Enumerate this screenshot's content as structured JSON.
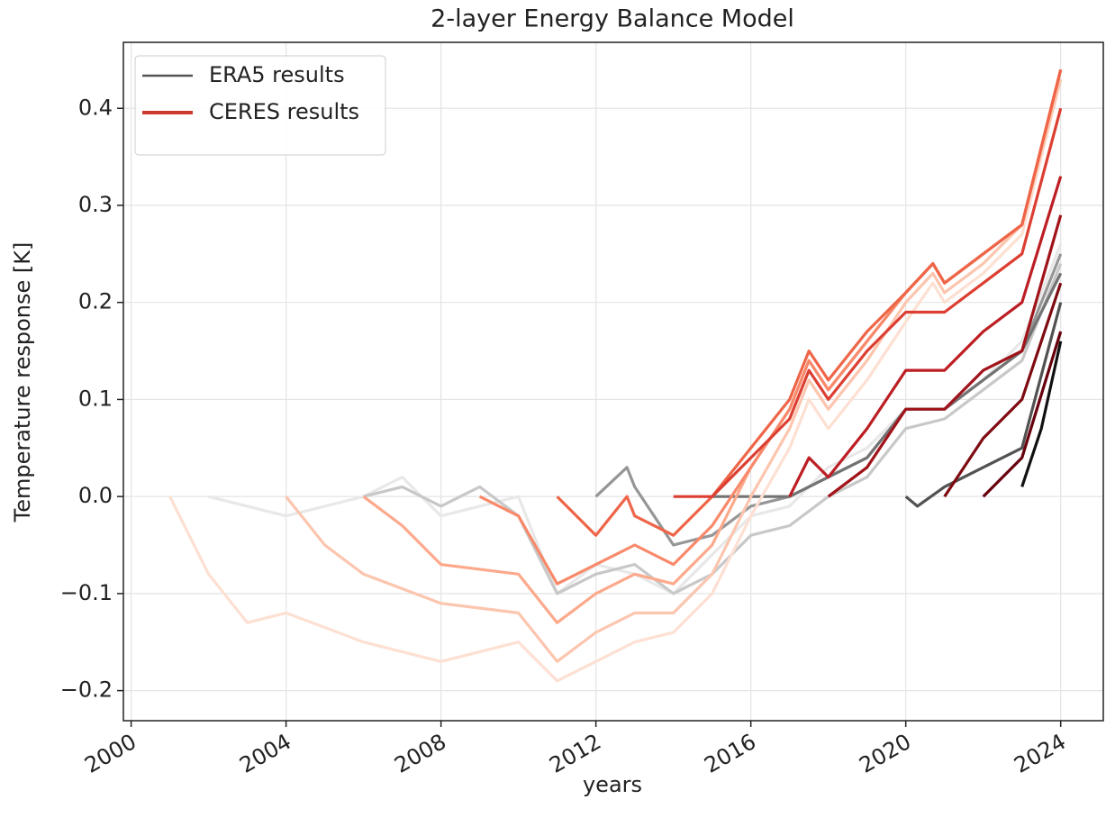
{
  "chart_data": {
    "type": "line",
    "title": "2-layer Energy Balance Model",
    "x_label": "years",
    "y_label": "Temperature response [K]",
    "xlim": [
      1999.8,
      2025.1
    ],
    "ylim": [
      -0.231,
      0.468
    ],
    "xticks": [
      2000,
      2004,
      2008,
      2012,
      2016,
      2020,
      2024
    ],
    "yticks": [
      {
        "value": -0.2,
        "label": "−0.2"
      },
      {
        "value": -0.1,
        "label": "−0.1"
      },
      {
        "value": 0,
        "label": "0.0"
      },
      0.1,
      0.2,
      0.3,
      0.4
    ],
    "grid": true,
    "legend": "upper left",
    "series": [
      {
        "name": "ERA5 results",
        "color": "#555555",
        "lines": [
          {
            "color": "#e8e8e8",
            "x": [
              2002,
              2004,
              2006,
              2007,
              2008,
              2010,
              2011,
              2012,
              2013,
              2014,
              2015,
              2016,
              2017,
              2018,
              2019,
              2020,
              2021,
              2022,
              2023,
              2024
            ],
            "values": [
              0,
              -0.02,
              0,
              0.02,
              -0.02,
              0,
              -0.1,
              -0.07,
              -0.08,
              -0.1,
              -0.06,
              -0.02,
              -0.01,
              0.03,
              0.05,
              0.09,
              0.09,
              0.12,
              0.16,
              0.26
            ]
          },
          {
            "color": "#c8c8c8",
            "x": [
              2006,
              2007,
              2008,
              2009,
              2010,
              2011,
              2012,
              2013,
              2014,
              2015,
              2016,
              2017,
              2018,
              2019,
              2020,
              2021,
              2022,
              2023,
              2024
            ],
            "values": [
              0,
              0.01,
              -0.01,
              0.01,
              -0.02,
              -0.1,
              -0.08,
              -0.07,
              -0.1,
              -0.08,
              -0.04,
              -0.03,
              0,
              0.02,
              0.07,
              0.08,
              0.11,
              0.14,
              0.24
            ]
          },
          {
            "color": "#969696",
            "x": [
              2012,
              2012.8,
              2013,
              2014,
              2015,
              2016,
              2017,
              2018,
              2019,
              2020,
              2021,
              2022,
              2023,
              2024
            ],
            "values": [
              0,
              0.03,
              0.01,
              -0.05,
              -0.04,
              -0.01,
              0,
              0.02,
              0.04,
              0.09,
              0.09,
              0.12,
              0.15,
              0.25
            ]
          },
          {
            "color": "#737373",
            "x": [
              2015,
              2016,
              2017,
              2018,
              2019,
              2020,
              2021,
              2022,
              2023,
              2024
            ],
            "values": [
              0,
              0,
              0,
              0.02,
              0.04,
              0.09,
              0.09,
              0.12,
              0.15,
              0.23
            ]
          },
          {
            "color": "#525252",
            "x": [
              2020,
              2020.3,
              2021,
              2022,
              2023,
              2024
            ],
            "values": [
              0,
              -0.01,
              0.01,
              0.03,
              0.05,
              0.2
            ]
          },
          {
            "color": "#111111",
            "x": [
              2023,
              2023.5,
              2024
            ],
            "values": [
              0.01,
              0.07,
              0.16
            ]
          }
        ]
      },
      {
        "name": "CERES results",
        "color": "#cb3a2c",
        "lines": [
          {
            "color": "#fde0d2",
            "x": [
              2001,
              2002,
              2003,
              2004,
              2006,
              2008,
              2010,
              2011,
              2012,
              2013,
              2014,
              2015,
              2016,
              2017,
              2017.5,
              2018,
              2019,
              2020,
              2020.7,
              2021,
              2022,
              2023,
              2024
            ],
            "values": [
              0,
              -0.08,
              -0.13,
              -0.12,
              -0.15,
              -0.17,
              -0.15,
              -0.19,
              -0.17,
              -0.15,
              -0.14,
              -0.1,
              -0.02,
              0.05,
              0.1,
              0.07,
              0.12,
              0.18,
              0.22,
              0.2,
              0.23,
              0.27,
              0.43
            ]
          },
          {
            "color": "#fcc5ae",
            "x": [
              2004,
              2005,
              2006,
              2008,
              2010,
              2011,
              2012,
              2013,
              2014,
              2015,
              2016,
              2017,
              2017.5,
              2018,
              2019,
              2020,
              2020.7,
              2021,
              2022,
              2023,
              2024
            ],
            "values": [
              0,
              -0.05,
              -0.08,
              -0.11,
              -0.12,
              -0.17,
              -0.14,
              -0.12,
              -0.12,
              -0.08,
              0,
              0.07,
              0.12,
              0.09,
              0.14,
              0.2,
              0.23,
              0.21,
              0.24,
              0.28,
              0.43
            ]
          },
          {
            "color": "#fca98c",
            "x": [
              2006,
              2007,
              2008,
              2010,
              2011,
              2012,
              2013,
              2014,
              2015,
              2016,
              2017,
              2017.5,
              2018,
              2019,
              2020,
              2020.7,
              2021,
              2022,
              2023,
              2024
            ],
            "values": [
              0,
              -0.03,
              -0.07,
              -0.08,
              -0.13,
              -0.1,
              -0.08,
              -0.09,
              -0.05,
              0.03,
              0.09,
              0.14,
              0.11,
              0.16,
              0.21,
              0.24,
              0.22,
              0.25,
              0.28,
              0.44
            ]
          },
          {
            "color": "#f8896a",
            "x": [
              2009,
              2010,
              2011,
              2012,
              2013,
              2014,
              2015,
              2016,
              2017,
              2017.5,
              2018,
              2019,
              2020,
              2020.7,
              2021,
              2022,
              2023,
              2024
            ],
            "values": [
              0,
              -0.02,
              -0.09,
              -0.07,
              -0.05,
              -0.07,
              -0.03,
              0.03,
              0.09,
              0.14,
              0.11,
              0.16,
              0.21,
              0.24,
              0.22,
              0.25,
              0.28,
              0.44
            ]
          },
          {
            "color": "#ee6548",
            "x": [
              2011,
              2012,
              2012.8,
              2013,
              2014,
              2015,
              2016,
              2017,
              2017.5,
              2018,
              2019,
              2020,
              2020.7,
              2021,
              2022,
              2023,
              2024
            ],
            "values": [
              0,
              -0.04,
              0,
              -0.02,
              -0.04,
              0,
              0.05,
              0.1,
              0.15,
              0.12,
              0.17,
              0.21,
              0.24,
              0.22,
              0.25,
              0.28,
              0.44
            ]
          },
          {
            "color": "#dc3f32",
            "x": [
              2014,
              2015,
              2016,
              2017,
              2017.5,
              2018,
              2019,
              2020,
              2021,
              2022,
              2023,
              2024
            ],
            "values": [
              0,
              0,
              0.04,
              0.08,
              0.13,
              0.1,
              0.15,
              0.19,
              0.19,
              0.22,
              0.25,
              0.4
            ]
          },
          {
            "color": "#bc1e24",
            "x": [
              2017,
              2017.5,
              2018,
              2019,
              2020,
              2021,
              2022,
              2023,
              2024
            ],
            "values": [
              0,
              0.04,
              0.02,
              0.07,
              0.13,
              0.13,
              0.17,
              0.2,
              0.33
            ]
          },
          {
            "color": "#a01319",
            "x": [
              2018,
              2019,
              2020,
              2021,
              2022,
              2023,
              2024
            ],
            "values": [
              0,
              0.03,
              0.09,
              0.09,
              0.13,
              0.15,
              0.29
            ]
          },
          {
            "color": "#7f0b12",
            "x": [
              2021,
              2022,
              2023,
              2024
            ],
            "values": [
              0,
              0.06,
              0.1,
              0.22
            ]
          },
          {
            "color": "#67000d",
            "x": [
              2022,
              2023,
              2024
            ],
            "values": [
              0,
              0.04,
              0.17
            ]
          }
        ]
      }
    ]
  }
}
